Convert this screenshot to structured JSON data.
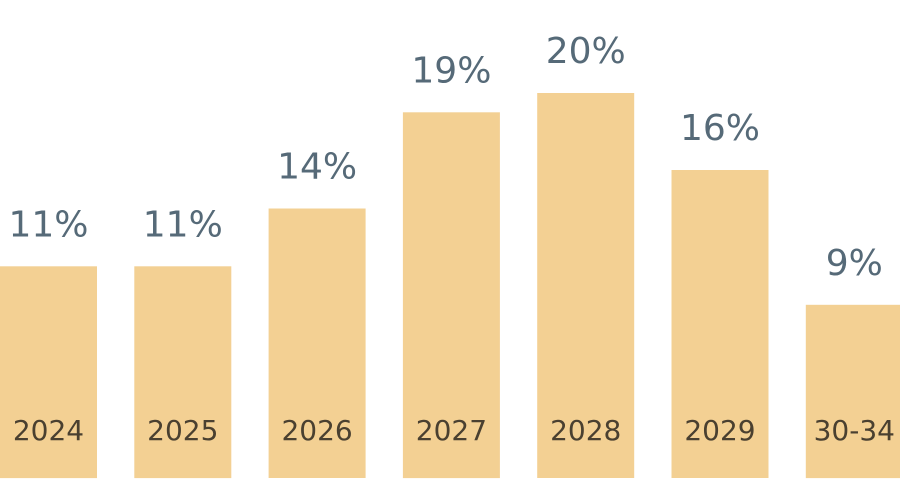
{
  "chart_data": {
    "type": "bar",
    "categories": [
      "2024",
      "2025",
      "2026",
      "2027",
      "2028",
      "2029",
      "30-34"
    ],
    "values": [
      11,
      11,
      14,
      19,
      20,
      16,
      9
    ],
    "value_labels": [
      "11%",
      "11%",
      "14%",
      "19%",
      "20%",
      "16%",
      "9%"
    ],
    "unit": "%",
    "title": "",
    "xlabel": "",
    "ylabel": "",
    "ylim": [
      0,
      20
    ],
    "grid": false,
    "legend": "none",
    "colors": {
      "bar": "#f3d093",
      "value_label": "#566a78",
      "category_label": "#4a4030"
    }
  }
}
